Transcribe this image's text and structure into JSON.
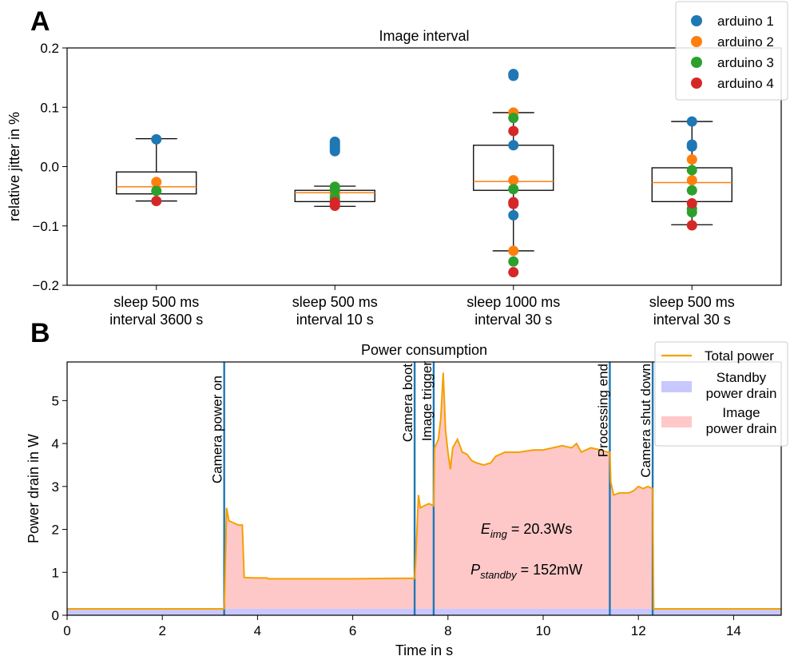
{
  "chart_data": [
    {
      "panel": "A",
      "type": "scatter",
      "box_overlay": true,
      "title": "Image interval",
      "xlabel": "",
      "ylabel": "relative jitter in %",
      "ylim": [
        -0.2,
        0.2
      ],
      "yticks": [
        "−0.2",
        "−0.1",
        "0.0",
        "0.1",
        "0.2"
      ],
      "categories": [
        "sleep 500 ms\ninterval 3600 s",
        "sleep 500 ms\ninterval 10 s",
        "sleep 1000 ms\ninterval 30 s",
        "sleep 500 ms\ninterval 30 s"
      ],
      "boxes": [
        {
          "whislo": -0.058,
          "q1": -0.046,
          "median": -0.034,
          "q3": -0.009,
          "whishi": 0.047
        },
        {
          "whislo": -0.067,
          "q1": -0.059,
          "median": -0.044,
          "q3": -0.04,
          "whishi": -0.033
        },
        {
          "whislo": -0.142,
          "q1": -0.04,
          "median": -0.025,
          "q3": 0.036,
          "whishi": 0.091
        },
        {
          "whislo": -0.098,
          "q1": -0.059,
          "median": -0.027,
          "q3": -0.002,
          "whishi": 0.076
        }
      ],
      "series": [
        {
          "name": "arduino 1",
          "color": "#1f77b4",
          "points": [
            [
              0,
              0.046
            ],
            [
              1,
              0.042
            ],
            [
              1,
              0.038
            ],
            [
              1,
              0.034
            ],
            [
              1,
              0.03
            ],
            [
              1,
              0.026
            ],
            [
              2,
              0.156
            ],
            [
              2,
              0.153
            ],
            [
              2,
              0.036
            ],
            [
              2,
              -0.082
            ],
            [
              3,
              0.076
            ],
            [
              3,
              0.037
            ],
            [
              3,
              0.034
            ]
          ]
        },
        {
          "name": "arduino 2",
          "color": "#ff7f0e",
          "points": [
            [
              0,
              -0.026
            ],
            [
              1,
              -0.043
            ],
            [
              1,
              -0.046
            ],
            [
              2,
              0.091
            ],
            [
              2,
              -0.023
            ],
            [
              2,
              -0.142
            ],
            [
              3,
              0.012
            ],
            [
              3,
              -0.023
            ]
          ]
        },
        {
          "name": "arduino 3",
          "color": "#2ca02c",
          "points": [
            [
              0,
              -0.041
            ],
            [
              1,
              -0.034
            ],
            [
              1,
              -0.039
            ],
            [
              1,
              -0.052
            ],
            [
              1,
              -0.057
            ],
            [
              2,
              0.082
            ],
            [
              2,
              -0.038
            ],
            [
              2,
              -0.16
            ],
            [
              3,
              -0.006
            ],
            [
              3,
              -0.04
            ],
            [
              3,
              -0.071
            ],
            [
              3,
              -0.077
            ]
          ]
        },
        {
          "name": "arduino 4",
          "color": "#d62728",
          "points": [
            [
              0,
              -0.058
            ],
            [
              1,
              -0.06
            ],
            [
              1,
              -0.064
            ],
            [
              1,
              -0.066
            ],
            [
              2,
              0.06
            ],
            [
              2,
              -0.06
            ],
            [
              2,
              -0.063
            ],
            [
              2,
              -0.178
            ],
            [
              3,
              -0.062
            ],
            [
              3,
              -0.099
            ]
          ]
        }
      ],
      "box_median_color": "#ff7f0e",
      "legend_position": "top-right"
    },
    {
      "panel": "B",
      "type": "line",
      "title": "Power consumption",
      "xlabel": "Time in s",
      "ylabel": "Power drain in W",
      "xlim": [
        0,
        15
      ],
      "ylim": [
        0,
        5.9
      ],
      "xticks": [
        "0",
        "2",
        "4",
        "6",
        "8",
        "10",
        "12",
        "14"
      ],
      "yticks": [
        "0",
        "1",
        "2",
        "3",
        "4",
        "5"
      ],
      "series": [
        {
          "name": "Total power",
          "color": "#f5a000",
          "points": [
            [
              0,
              0.15
            ],
            [
              3.3,
              0.15
            ],
            [
              3.32,
              1.0
            ],
            [
              3.35,
              2.5
            ],
            [
              3.4,
              2.2
            ],
            [
              3.5,
              2.15
            ],
            [
              3.6,
              2.1
            ],
            [
              3.68,
              2.1
            ],
            [
              3.72,
              0.88
            ],
            [
              3.9,
              0.87
            ],
            [
              4.2,
              0.87
            ],
            [
              4.21,
              0.85
            ],
            [
              5.0,
              0.85
            ],
            [
              6.0,
              0.85
            ],
            [
              7.0,
              0.86
            ],
            [
              7.3,
              0.86
            ],
            [
              7.32,
              1.2
            ],
            [
              7.38,
              2.8
            ],
            [
              7.42,
              2.5
            ],
            [
              7.5,
              2.55
            ],
            [
              7.6,
              2.6
            ],
            [
              7.7,
              2.55
            ],
            [
              7.72,
              3.9
            ],
            [
              7.8,
              4.1
            ],
            [
              7.85,
              4.6
            ],
            [
              7.9,
              5.65
            ],
            [
              7.95,
              4.3
            ],
            [
              8.0,
              3.8
            ],
            [
              8.05,
              3.4
            ],
            [
              8.1,
              3.9
            ],
            [
              8.2,
              4.1
            ],
            [
              8.3,
              3.8
            ],
            [
              8.4,
              3.75
            ],
            [
              8.5,
              3.6
            ],
            [
              8.6,
              3.55
            ],
            [
              8.75,
              3.5
            ],
            [
              8.9,
              3.55
            ],
            [
              9.0,
              3.7
            ],
            [
              9.2,
              3.8
            ],
            [
              9.5,
              3.8
            ],
            [
              9.8,
              3.85
            ],
            [
              10.0,
              3.85
            ],
            [
              10.2,
              3.9
            ],
            [
              10.4,
              3.95
            ],
            [
              10.6,
              3.9
            ],
            [
              10.7,
              4.0
            ],
            [
              10.8,
              3.8
            ],
            [
              11.0,
              3.9
            ],
            [
              11.2,
              3.85
            ],
            [
              11.35,
              3.8
            ],
            [
              11.4,
              3.8
            ],
            [
              11.42,
              3.1
            ],
            [
              11.48,
              2.8
            ],
            [
              11.6,
              2.85
            ],
            [
              11.8,
              2.85
            ],
            [
              11.9,
              2.9
            ],
            [
              12.0,
              3.0
            ],
            [
              12.1,
              2.95
            ],
            [
              12.2,
              3.0
            ],
            [
              12.3,
              2.95
            ],
            [
              12.32,
              0.15
            ],
            [
              15.0,
              0.15
            ]
          ]
        }
      ],
      "areas": [
        {
          "name": "Standby\npower drain",
          "color": "#c8c8ff",
          "value": 0.152
        },
        {
          "name": "Image\npower drain",
          "color": "#ffc8c8"
        }
      ],
      "events": [
        {
          "label": "Camera power on",
          "x": 3.3
        },
        {
          "label": "Camera boot",
          "x": 7.3
        },
        {
          "label": "Image trigger",
          "x": 7.7
        },
        {
          "label": "Processing end",
          "x": 11.4
        },
        {
          "label": "Camera shut down",
          "x": 12.3
        }
      ],
      "annotations": [
        {
          "base": "E",
          "sub": "img",
          "value": "= 20.3Ws"
        },
        {
          "base": "P",
          "sub": "standby",
          "value": "= 152mW"
        }
      ],
      "legend_position": "top-right"
    }
  ]
}
